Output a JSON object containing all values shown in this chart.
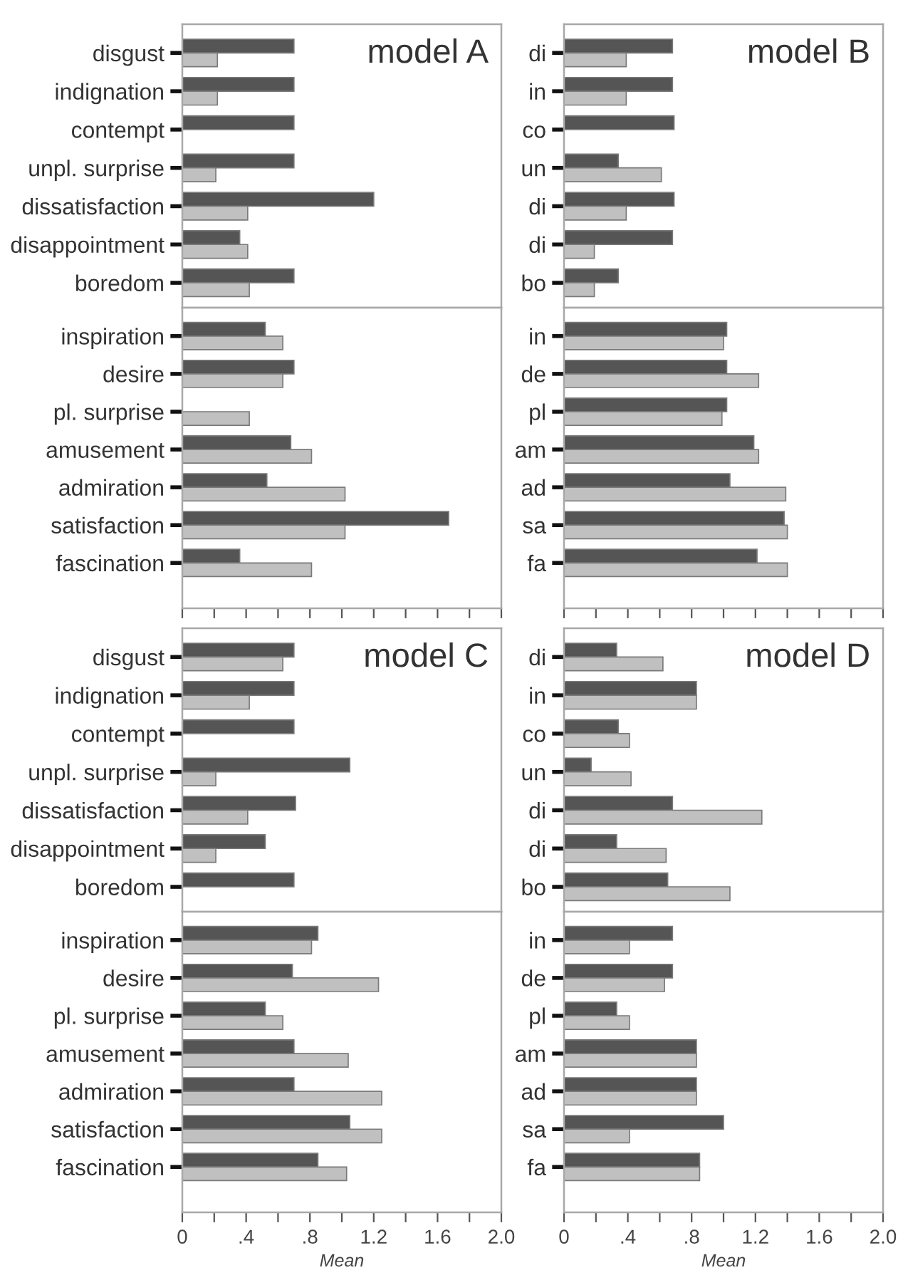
{
  "chart_data": [
    {
      "type": "bar",
      "orientation": "horizontal",
      "title": "model A",
      "tick_labels": "y",
      "xlim": [
        0,
        2
      ],
      "categories": [
        "disgust",
        "indignation",
        "contempt",
        "unpl. surprise",
        "dissatisfaction",
        "disappointment",
        "boredom"
      ],
      "series": [
        {
          "color": "#555555",
          "values": [
            0.7,
            0.7,
            0.7,
            0.7,
            1.2,
            0.36,
            0.7
          ]
        },
        {
          "color": "#c0c0c0",
          "values": [
            0.22,
            0.22,
            null,
            0.21,
            0.41,
            0.41,
            0.42
          ]
        }
      ]
    },
    {
      "type": "bar",
      "orientation": "horizontal",
      "tick_labels": "y",
      "xlim": [
        0,
        2
      ],
      "xticks": [
        {
          "value": 0,
          "label": null
        },
        {
          "value": 0.2,
          "label": null
        },
        {
          "value": 0.4,
          "label": null
        },
        {
          "value": 0.6,
          "label": null
        },
        {
          "value": 0.8,
          "label": null
        },
        {
          "value": 1.0,
          "label": null
        },
        {
          "value": 1.2,
          "label": null
        },
        {
          "value": 1.4,
          "label": null
        },
        {
          "value": 1.6,
          "label": null
        },
        {
          "value": 1.8,
          "label": null
        },
        {
          "value": 2,
          "label": null
        }
      ],
      "categories": [
        "inspiration",
        "desire",
        "pl. surprise",
        "amusement",
        "admiration",
        "satisfaction",
        "fascination"
      ],
      "series": [
        {
          "color": "#555555",
          "values": [
            0.52,
            0.7,
            null,
            0.68,
            0.53,
            1.67,
            0.36
          ]
        },
        {
          "color": "#c0c0c0",
          "values": [
            0.63,
            0.63,
            0.42,
            0.81,
            1.02,
            1.02,
            0.81
          ]
        }
      ]
    },
    {
      "type": "bar",
      "orientation": "horizontal",
      "title": "model B",
      "tick_labels": "y",
      "xlim": [
        0,
        2
      ],
      "categories": [
        "di",
        "in",
        "co",
        "un",
        "di",
        "di",
        "bo"
      ],
      "series": [
        {
          "color": "#555555",
          "values": [
            0.68,
            0.68,
            0.69,
            0.34,
            0.69,
            0.68,
            0.34
          ]
        },
        {
          "color": "#c0c0c0",
          "values": [
            0.39,
            0.39,
            null,
            0.61,
            0.39,
            0.19,
            0.19
          ]
        }
      ]
    },
    {
      "type": "bar",
      "orientation": "horizontal",
      "tick_labels": "y",
      "xlim": [
        0,
        2
      ],
      "xticks": [
        {
          "value": 0,
          "label": null
        },
        {
          "value": 0.2,
          "label": null
        },
        {
          "value": 0.4,
          "label": null
        },
        {
          "value": 0.6,
          "label": null
        },
        {
          "value": 0.8,
          "label": null
        },
        {
          "value": 1.0,
          "label": null
        },
        {
          "value": 1.2,
          "label": null
        },
        {
          "value": 1.4,
          "label": null
        },
        {
          "value": 1.6,
          "label": null
        },
        {
          "value": 1.8,
          "label": null
        },
        {
          "value": 2,
          "label": null
        }
      ],
      "categories": [
        "in",
        "de",
        "pl",
        "am",
        "ad",
        "sa",
        "fa"
      ],
      "series": [
        {
          "color": "#555555",
          "values": [
            1.02,
            1.02,
            1.02,
            1.19,
            1.04,
            1.38,
            1.21
          ]
        },
        {
          "color": "#c0c0c0",
          "values": [
            1.0,
            1.22,
            0.99,
            1.22,
            1.39,
            1.4,
            1.4
          ]
        }
      ]
    },
    {
      "type": "bar",
      "orientation": "horizontal",
      "title": "model C",
      "tick_labels": "y",
      "xlim": [
        0,
        2
      ],
      "categories": [
        "disgust",
        "indignation",
        "contempt",
        "unpl. surprise",
        "dissatisfaction",
        "disappointment",
        "boredom"
      ],
      "series": [
        {
          "color": "#555555",
          "values": [
            0.7,
            0.7,
            0.7,
            1.05,
            0.71,
            0.52,
            0.7
          ]
        },
        {
          "color": "#c0c0c0",
          "values": [
            0.63,
            0.42,
            null,
            0.21,
            0.41,
            0.21,
            null
          ]
        }
      ]
    },
    {
      "type": "bar",
      "orientation": "horizontal",
      "xlabel": "Mean",
      "xlim": [
        0,
        2
      ],
      "xticks": [
        0,
        {
          "value": 0.2,
          "label": null
        },
        {
          "value": 0.4,
          "label": ".4"
        },
        {
          "value": 0.6,
          "label": null
        },
        {
          "value": 0.8,
          "label": ".8"
        },
        {
          "value": 1.0,
          "label": null
        },
        1.2,
        {
          "value": 1.4,
          "label": null
        },
        1.6,
        {
          "value": 1.8,
          "label": null
        },
        {
          "value": 2,
          "label": "2.0"
        }
      ],
      "categories": [
        "inspiration",
        "desire",
        "pl. surprise",
        "amusement",
        "admiration",
        "satisfaction",
        "fascination"
      ],
      "series": [
        {
          "color": "#555555",
          "values": [
            0.85,
            0.69,
            0.52,
            0.7,
            0.7,
            1.05,
            0.85
          ]
        },
        {
          "color": "#c0c0c0",
          "values": [
            0.81,
            1.23,
            0.63,
            1.04,
            1.25,
            1.25,
            1.03
          ]
        }
      ]
    },
    {
      "type": "bar",
      "orientation": "horizontal",
      "title": "model D",
      "tick_labels": "y",
      "xlim": [
        0,
        2
      ],
      "categories": [
        "di",
        "in",
        "co",
        "un",
        "di",
        "di",
        "bo"
      ],
      "series": [
        {
          "color": "#555555",
          "values": [
            0.33,
            0.83,
            0.34,
            0.17,
            0.68,
            0.33,
            0.65
          ]
        },
        {
          "color": "#c0c0c0",
          "values": [
            0.62,
            0.83,
            0.41,
            0.42,
            1.24,
            0.64,
            1.04
          ]
        }
      ]
    },
    {
      "type": "bar",
      "orientation": "horizontal",
      "xlabel": "Mean",
      "xlim": [
        0,
        2
      ],
      "xticks": [
        0,
        {
          "value": 0.2,
          "label": null
        },
        {
          "value": 0.4,
          "label": ".4"
        },
        {
          "value": 0.6,
          "label": null
        },
        {
          "value": 0.8,
          "label": ".8"
        },
        {
          "value": 1.0,
          "label": null
        },
        1.2,
        {
          "value": 1.4,
          "label": null
        },
        1.6,
        {
          "value": 1.8,
          "label": null
        },
        {
          "value": 2,
          "label": "2.0"
        }
      ],
      "categories": [
        "in",
        "de",
        "pl",
        "am",
        "ad",
        "sa",
        "fa"
      ],
      "series": [
        {
          "color": "#555555",
          "values": [
            0.68,
            0.68,
            0.33,
            0.83,
            0.83,
            1.0,
            0.85
          ]
        },
        {
          "color": "#c0c0c0",
          "values": [
            0.41,
            0.63,
            0.41,
            0.83,
            0.83,
            0.41,
            0.85
          ]
        }
      ]
    }
  ]
}
